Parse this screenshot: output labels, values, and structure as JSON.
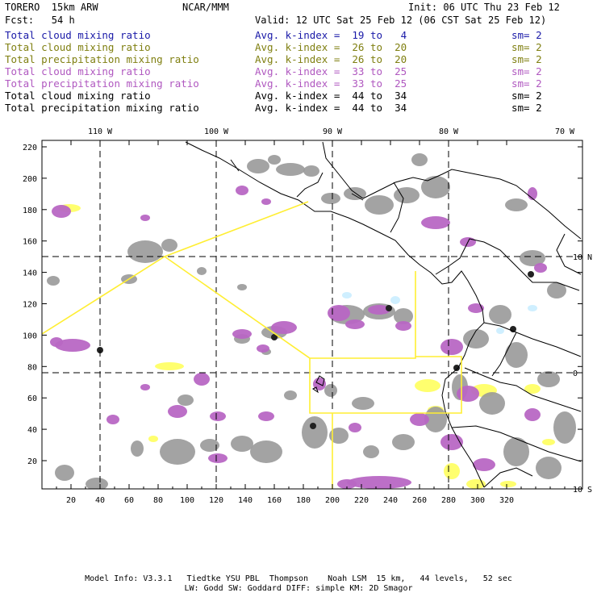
{
  "header": {
    "model": "TORERO  15km ARW",
    "org": "NCAR/MMM",
    "init": "Init: 06 UTC Thu 23 Feb 12",
    "fcst": "Fcst:   54 h",
    "valid": "Valid: 12 UTC Sat 25 Feb 12 (06 CST Sat 25 Feb 12)"
  },
  "legend": [
    {
      "field": "Total cloud mixing ratio",
      "avg": "Avg. k-index =  19 to   4",
      "sm": "sm= 2",
      "color": "#1a1aa8"
    },
    {
      "field": "Total cloud mixing ratio",
      "avg": "Avg. k-index =  26 to  20",
      "sm": "sm= 2",
      "color": "#7f7f10"
    },
    {
      "field": "Total precipitation mixing ratio",
      "avg": "Avg. k-index =  26 to  20",
      "sm": "sm= 2",
      "color": "#7f7f10"
    },
    {
      "field": "Total cloud mixing ratio",
      "avg": "Avg. k-index =  33 to  25",
      "sm": "sm= 2",
      "color": "#b058c0"
    },
    {
      "field": "Total precipitation mixing ratio",
      "avg": "Avg. k-index =  33 to  25",
      "sm": "sm= 2",
      "color": "#b058c0"
    },
    {
      "field": "Total cloud mixing ratio",
      "avg": "Avg. k-index =  44 to  34",
      "sm": "sm= 2",
      "color": "#000000"
    },
    {
      "field": "Total precipitation mixing ratio",
      "avg": "Avg. k-index =  44 to  34",
      "sm": "sm= 2",
      "color": "#000000"
    }
  ],
  "map": {
    "lon_labels": [
      "110 W",
      "100 W",
      "90 W",
      "80 W",
      "70 W"
    ],
    "lat_labels": [
      "10 N",
      "0",
      "10 S"
    ],
    "x_ticks": [
      "20",
      "40",
      "60",
      "80",
      "100",
      "120",
      "140",
      "160",
      "180",
      "200",
      "220",
      "240",
      "260",
      "280",
      "300",
      "320"
    ],
    "y_ticks": [
      "220",
      "200",
      "180",
      "160",
      "140",
      "120",
      "100",
      "80",
      "60",
      "40",
      "20"
    ],
    "colors": {
      "cloud_gray": "#999999",
      "purple": "#b867c4",
      "yellow": "#ffff66",
      "light_blue": "#cceeff",
      "domain": "#ffee33",
      "coast": "#000000"
    }
  },
  "footer": {
    "line1": "Model Info: V3.3.1   Tiedtke YSU PBL  Thompson    Noah LSM  15 km,   44 levels,   52 sec",
    "line2": "LW: Godd SW: Goddard DIFF: simple KM: 2D Smagor"
  }
}
